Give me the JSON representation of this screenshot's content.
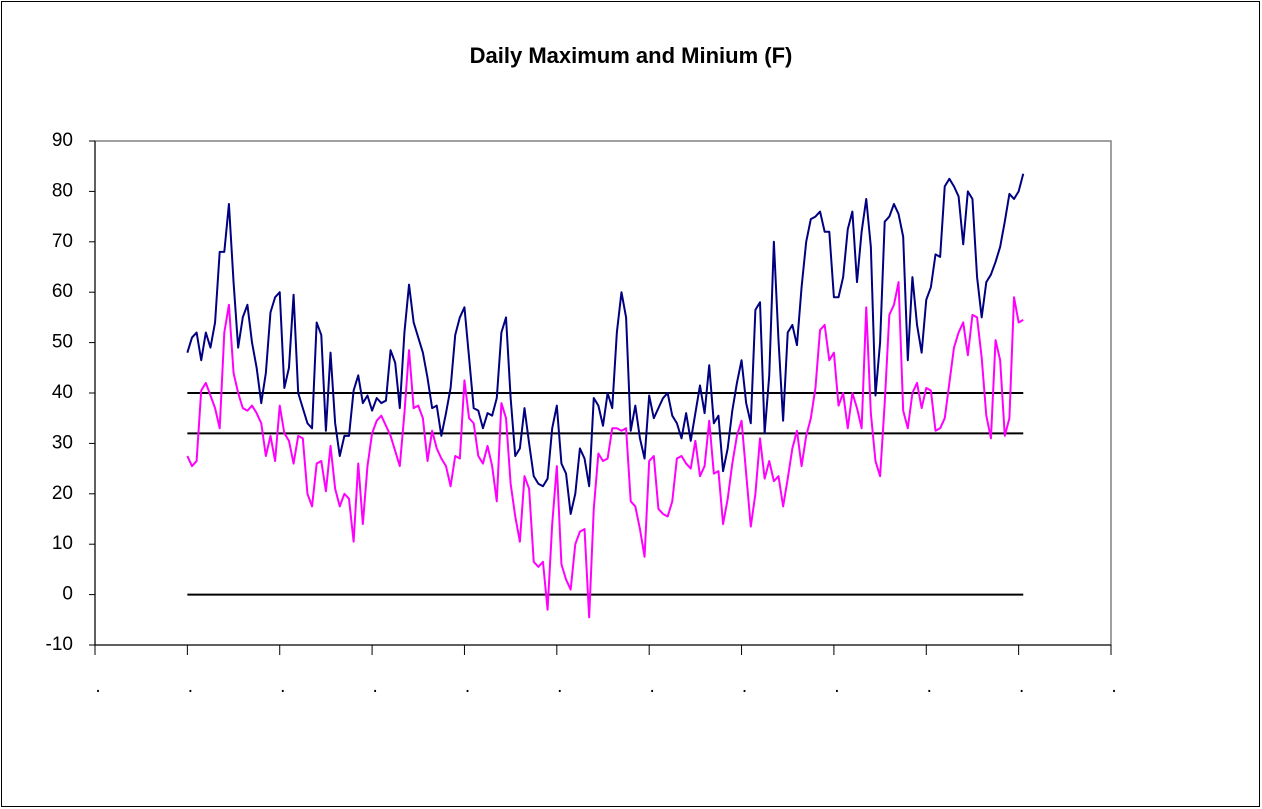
{
  "chart_data": {
    "type": "line",
    "title": "Daily Maximum and Minium (F)",
    "x": [
      20,
      21,
      22,
      23,
      24,
      25,
      26,
      27,
      28,
      29,
      30,
      31,
      32,
      33,
      34,
      35,
      36,
      37,
      38,
      39,
      40,
      41,
      42,
      43,
      44,
      45,
      46,
      47,
      48,
      49,
      50,
      51,
      52,
      53,
      54,
      55,
      56,
      57,
      58,
      59,
      60,
      61,
      62,
      63,
      64,
      65,
      66,
      67,
      68,
      69,
      70,
      71,
      72,
      73,
      74,
      75,
      76,
      77,
      78,
      79,
      80,
      81,
      82,
      83,
      84,
      85,
      86,
      87,
      88,
      89,
      90,
      91,
      92,
      93,
      94,
      95,
      96,
      97,
      98,
      99,
      100,
      101,
      102,
      103,
      104,
      105,
      106,
      107,
      108,
      109,
      110,
      111,
      112,
      113,
      114,
      115,
      116,
      117,
      118,
      119,
      120,
      121,
      122,
      123,
      124,
      125,
      126,
      127,
      128,
      129,
      130,
      131,
      132,
      133,
      134,
      135,
      136,
      137,
      138,
      139,
      140,
      141,
      142,
      143,
      144,
      145,
      146,
      147,
      148,
      149,
      150,
      151,
      152,
      153,
      154,
      155,
      156,
      157,
      158,
      159,
      160,
      161,
      162,
      163,
      164,
      165,
      166,
      167,
      168,
      169,
      170,
      171,
      172,
      173,
      174,
      175,
      176,
      177,
      178,
      179,
      180,
      181,
      182,
      183,
      184,
      185,
      186,
      187,
      188,
      189,
      190,
      191,
      192,
      193,
      194,
      195,
      196,
      197,
      198,
      199,
      200,
      201
    ],
    "series": [
      {
        "color": "#000080",
        "values": [
          48,
          51,
          52,
          46.5,
          52,
          49,
          54,
          68,
          68,
          77.5,
          62,
          49,
          55,
          57.5,
          50,
          45,
          38,
          44,
          56,
          59,
          60,
          41,
          45,
          59.5,
          40,
          37,
          34,
          33,
          54,
          51.5,
          32.5,
          48,
          34,
          27.5,
          31.5,
          31.5,
          40.5,
          43.5,
          38,
          39.5,
          36.5,
          39,
          38,
          38.5,
          48.5,
          46,
          37,
          52,
          61.5,
          54,
          51,
          48,
          43,
          37,
          37.5,
          31.5,
          36,
          41,
          51.5,
          55,
          57,
          47,
          37,
          36.5,
          33,
          36,
          35.5,
          39,
          52,
          55,
          39,
          27.5,
          29,
          37,
          30,
          23.5,
          22,
          21.5,
          23,
          33,
          37.5,
          26,
          24,
          16,
          20,
          29,
          27,
          21.5,
          39,
          37.5,
          33.5,
          40,
          37,
          52,
          60,
          55,
          32.5,
          37.5,
          31,
          27,
          39.5,
          35,
          37,
          39,
          40,
          35.5,
          34,
          31,
          36,
          30.5,
          36,
          41.5,
          36,
          45.5,
          34,
          35.5,
          24.5,
          29,
          36.5,
          42,
          46.5,
          38,
          34,
          56.5,
          58,
          32,
          43.5,
          70,
          50.5,
          34.5,
          52,
          53.5,
          49.5,
          61,
          70,
          74.5,
          75,
          76,
          72,
          72,
          59,
          59,
          63,
          72.5,
          76,
          62,
          72,
          78.5,
          69,
          39.5,
          50,
          74,
          75,
          77.5,
          75.5,
          71,
          46.5,
          63,
          53.5,
          48,
          58.5,
          61,
          67.5,
          67,
          81,
          82.5,
          81,
          79,
          69.5,
          80,
          78.5,
          63,
          55,
          62,
          63.5,
          66,
          69,
          74,
          79.5,
          78.5,
          80,
          83.5
        ]
      },
      {
        "color": "#ff00ff",
        "values": [
          27.5,
          25.5,
          26.5,
          40.5,
          42,
          39.5,
          37,
          33,
          52,
          57.5,
          44,
          40,
          37,
          36.5,
          37.5,
          36,
          34,
          27.5,
          31.5,
          26.5,
          37.5,
          32,
          30.5,
          26,
          31.5,
          31,
          20,
          17.5,
          26,
          26.5,
          20.5,
          29.5,
          21,
          17.5,
          20,
          19,
          10.5,
          26,
          14,
          25.5,
          32,
          34.5,
          35.5,
          33.5,
          31.5,
          28.5,
          25.5,
          36,
          48.5,
          37,
          37.5,
          35,
          26.5,
          32.5,
          29,
          27,
          25.5,
          21.5,
          27.5,
          27,
          42.5,
          35,
          34,
          27.5,
          26,
          29.5,
          25.5,
          18.5,
          38,
          35,
          22,
          15.5,
          10.5,
          23.5,
          21,
          6.5,
          5.5,
          6.5,
          -3,
          14,
          25.5,
          6,
          3,
          1,
          10,
          12.5,
          13,
          -4.5,
          17,
          28,
          26.5,
          27,
          33,
          33,
          32.5,
          33,
          18.5,
          17.5,
          13,
          7.5,
          26.5,
          27.5,
          17,
          16,
          15.5,
          18.5,
          27,
          27.5,
          26,
          25,
          30.5,
          23.5,
          25.5,
          34.5,
          24,
          24.5,
          14,
          19,
          26,
          31.5,
          34.5,
          24,
          13.5,
          20,
          31,
          23,
          26.5,
          22.5,
          23.5,
          17.5,
          23,
          29,
          32.5,
          25.5,
          31.5,
          35,
          41,
          52.5,
          53.5,
          46.5,
          48,
          37.5,
          40,
          33,
          40,
          37,
          33,
          57,
          36,
          26.5,
          23.5,
          38,
          55.5,
          57.5,
          62,
          36.5,
          33,
          40,
          42,
          37,
          41,
          40.5,
          32.5,
          33,
          35,
          42,
          49,
          52,
          54,
          47.5,
          55.5,
          55,
          47,
          35.5,
          31,
          50.5,
          46.5,
          31.5,
          35,
          59,
          54,
          54.5
        ]
      }
    ],
    "hlines": [
      0,
      32,
      40
    ],
    "hline_color": "#000000",
    "xlim": [
      0,
      220
    ],
    "xticks": [
      {
        "value": 0,
        "label": "."
      },
      {
        "value": 20,
        "label": "."
      },
      {
        "value": 40,
        "label": "."
      },
      {
        "value": 60,
        "label": "."
      },
      {
        "value": 80,
        "label": "."
      },
      {
        "value": 100,
        "label": "."
      },
      {
        "value": 120,
        "label": "."
      },
      {
        "value": 140,
        "label": "."
      },
      {
        "value": 160,
        "label": "."
      },
      {
        "value": 180,
        "label": "."
      },
      {
        "value": 200,
        "label": "."
      },
      {
        "value": 220,
        "label": "."
      }
    ],
    "ylim": [
      -10,
      90
    ],
    "yticks": [
      -10,
      0,
      10,
      20,
      30,
      40,
      50,
      60,
      70,
      80,
      90
    ],
    "grid": false
  }
}
